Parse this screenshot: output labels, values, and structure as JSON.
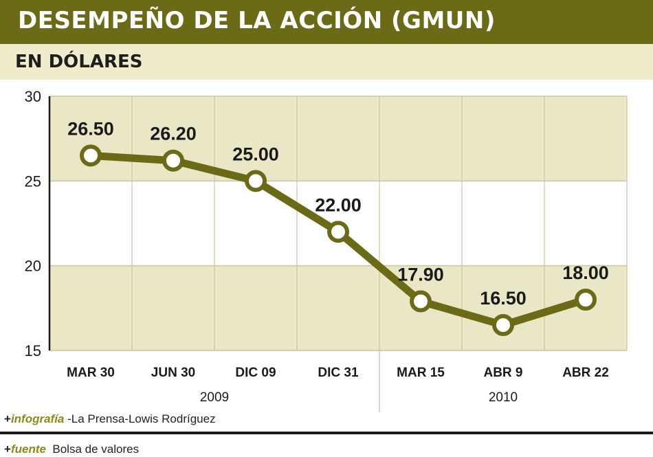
{
  "header": {
    "title": "DESEMPEÑO DE LA ACCIÓN (GMUN)",
    "subtitle": "EN DÓLARES"
  },
  "chart_data": {
    "type": "line",
    "categories": [
      "MAR 30",
      "JUN 30",
      "DIC 09",
      "DIC 31",
      "MAR 15",
      "ABR 9",
      "ABR 22"
    ],
    "values": [
      26.5,
      26.2,
      25.0,
      22.0,
      17.9,
      16.5,
      18.0
    ],
    "data_labels": [
      "26.50",
      "26.20",
      "25.00",
      "22.00",
      "17.90",
      "16.50",
      "18.00"
    ],
    "y_ticks": [
      15,
      20,
      25,
      30
    ],
    "ylim": [
      15,
      30
    ],
    "groups": [
      {
        "label": "2009",
        "from": 0,
        "to": 3
      },
      {
        "label": "2010",
        "from": 4,
        "to": 6
      }
    ],
    "series_color": "#6b6a17",
    "band_color": "#e9e7c5",
    "title": "DESEMPEÑO DE LA ACCIÓN (GMUN)",
    "ylabel": "EN DÓLARES"
  },
  "footer": {
    "credit_tag": "infografía",
    "credit_text": "-La Prensa-Lowis Rodríguez",
    "source_tag": "fuente",
    "source_text": "Bolsa de valores"
  }
}
